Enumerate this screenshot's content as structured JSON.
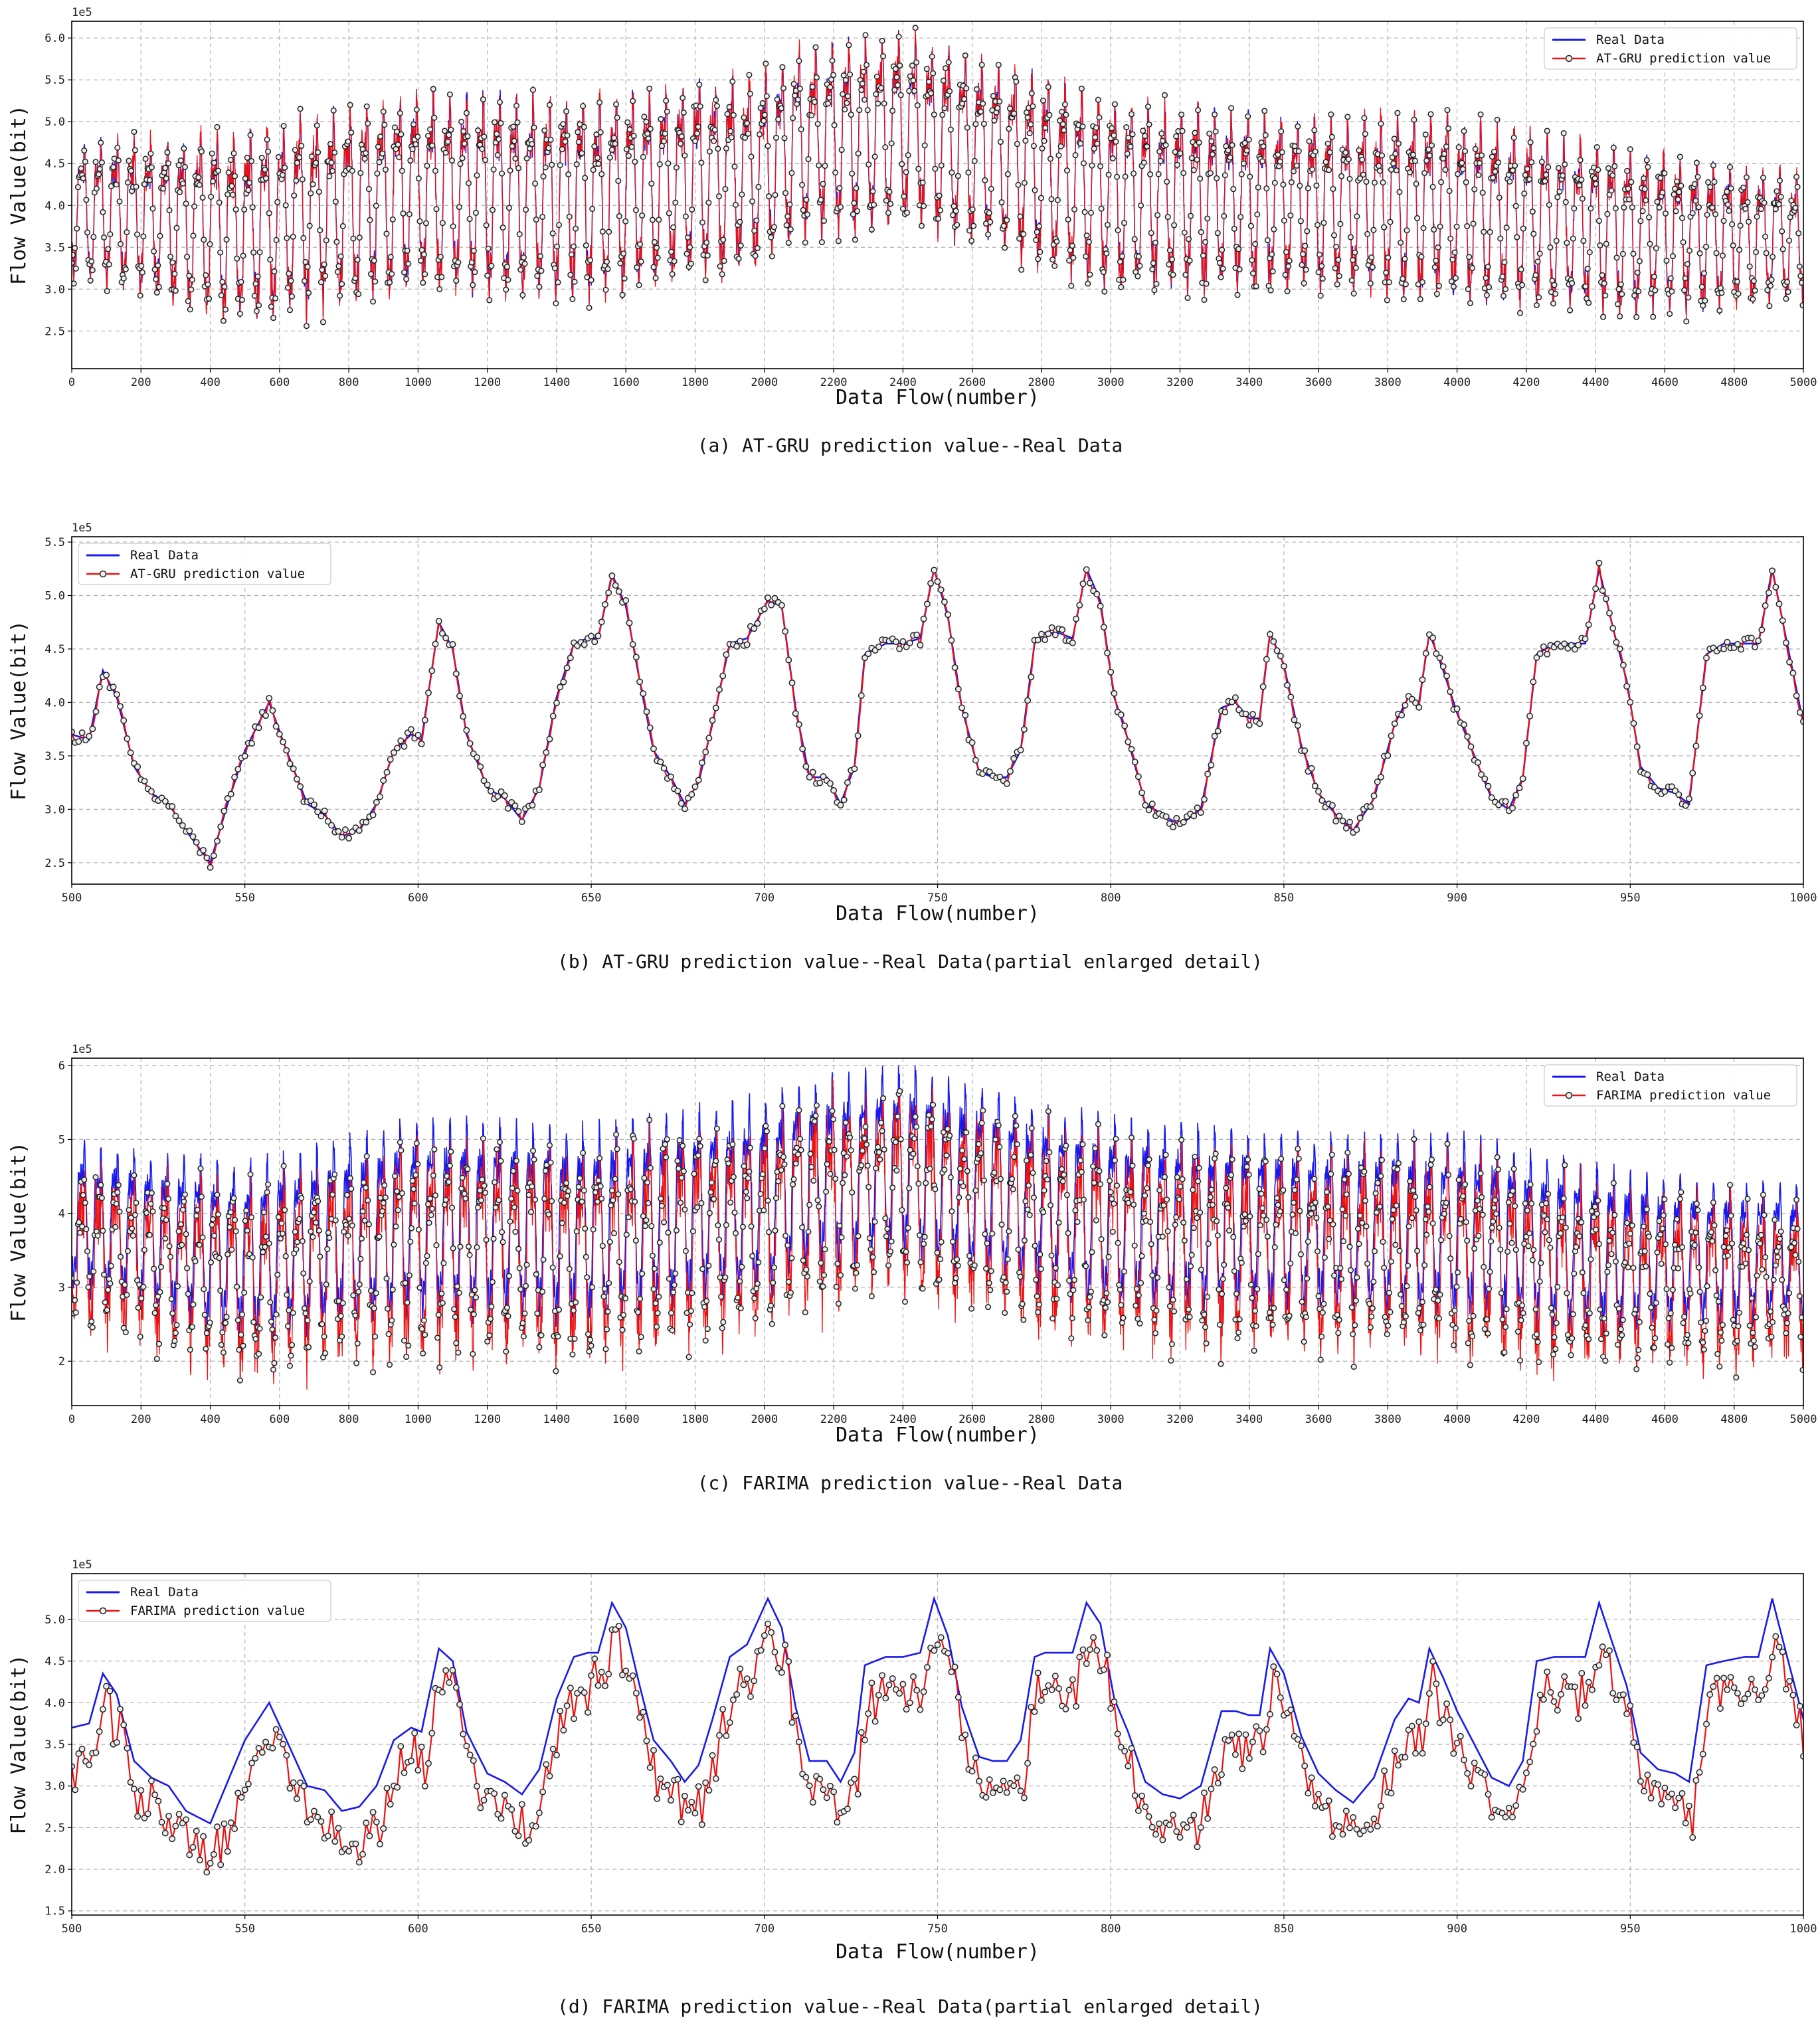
{
  "figure": {
    "colors": {
      "real": "#1a1aee",
      "prediction": "#ee1111",
      "marker_fill": "#eeeeee",
      "marker_edge": "#222222",
      "grid": "#b0b0b0"
    }
  },
  "chart_data": [
    {
      "id": "a",
      "type": "line",
      "title": "(a)  AT-GRU prediction value--Real Data",
      "xlabel": "Data Flow(number)",
      "ylabel": "Flow Value(bit)",
      "offset_text": "1e5",
      "xlim": [
        0,
        5000
      ],
      "ylim": [
        2.05,
        6.2
      ],
      "xticks": [
        0,
        200,
        400,
        600,
        800,
        1000,
        1200,
        1400,
        1600,
        1800,
        2000,
        2200,
        2400,
        2600,
        2800,
        3000,
        3200,
        3400,
        3600,
        3800,
        4000,
        4200,
        4400,
        4600,
        4800,
        5000
      ],
      "yticks": [
        2.5,
        3.0,
        3.5,
        4.0,
        4.5,
        5.0,
        5.5,
        6.0
      ],
      "ytick_decimals": 1,
      "grid": true,
      "legend": {
        "position": "top-right"
      },
      "series": [
        {
          "name": "Real Data",
          "color": "#1a1aee"
        },
        {
          "name": "AT-GRU prediction value",
          "color": "#ee1111",
          "marker": "o"
        }
      ],
      "x_sample": [
        0,
        500,
        1000,
        1500,
        2000,
        2100,
        2400,
        3000,
        3500,
        4000,
        4500,
        5000
      ],
      "envelope_upper": [
        4.7,
        4.8,
        5.3,
        5.2,
        5.5,
        5.8,
        6.0,
        5.2,
        5.0,
        5.0,
        4.6,
        4.3
      ],
      "envelope_lower": [
        3.1,
        2.5,
        2.9,
        2.8,
        3.2,
        3.5,
        3.7,
        2.9,
        2.9,
        2.8,
        2.6,
        2.8
      ],
      "points": 5000,
      "model_noise": 0.08,
      "model_bias": 0.0
    },
    {
      "id": "b",
      "type": "line",
      "title": "(b)  AT-GRU prediction value--Real Data(partial enlarged detail)",
      "xlabel": "Data Flow(number)",
      "ylabel": "Flow Value(bit)",
      "offset_text": "1e5",
      "xlim": [
        500,
        1000
      ],
      "ylim": [
        2.3,
        5.55
      ],
      "xticks": [
        500,
        550,
        600,
        650,
        700,
        750,
        800,
        850,
        900,
        950,
        1000
      ],
      "yticks": [
        2.5,
        3.0,
        3.5,
        4.0,
        4.5,
        5.0,
        5.5
      ],
      "ytick_decimals": 1,
      "grid": true,
      "legend": {
        "position": "top-left"
      },
      "series": [
        {
          "name": "Real Data",
          "color": "#1a1aee"
        },
        {
          "name": "AT-GRU prediction value",
          "color": "#ee1111",
          "marker": "o"
        }
      ],
      "real_data_keypoints": {
        "x": [
          500,
          505,
          509,
          513,
          518,
          523,
          528,
          533,
          540,
          545,
          550,
          557,
          562,
          568,
          573,
          578,
          583,
          588,
          593,
          598,
          601,
          606,
          610,
          614,
          620,
          625,
          630,
          635,
          640,
          645,
          649,
          652,
          656,
          660,
          664,
          668,
          673,
          677,
          681,
          685,
          690,
          695,
          701,
          705,
          709,
          713,
          718,
          722,
          726,
          729,
          735,
          740,
          745,
          749,
          753,
          757,
          762,
          766,
          770,
          774,
          778,
          781,
          785,
          789,
          793,
          797,
          801,
          805,
          810,
          815,
          820,
          826,
          832,
          836,
          840,
          843,
          846,
          850,
          855,
          860,
          865,
          870,
          876,
          882,
          886,
          889,
          892,
          896,
          900,
          905,
          910,
          915,
          919,
          923,
          928,
          933,
          937,
          941,
          945,
          949,
          953,
          958,
          963,
          967,
          972,
          977,
          983,
          987,
          991,
          995,
          1000
        ],
        "y": [
          3.7,
          3.65,
          4.3,
          4.05,
          3.4,
          3.15,
          3.05,
          2.8,
          2.5,
          3.05,
          3.55,
          4.0,
          3.55,
          3.05,
          2.95,
          2.75,
          2.8,
          3.05,
          3.55,
          3.7,
          3.65,
          4.75,
          4.5,
          3.7,
          3.2,
          3.1,
          2.9,
          3.2,
          4.05,
          4.55,
          4.6,
          4.6,
          5.2,
          4.9,
          4.2,
          3.55,
          3.3,
          3.05,
          3.25,
          3.8,
          4.55,
          4.6,
          4.95,
          4.9,
          3.95,
          3.3,
          3.3,
          3.05,
          3.4,
          4.45,
          4.55,
          4.55,
          4.6,
          5.25,
          4.8,
          3.95,
          3.35,
          3.3,
          3.3,
          3.55,
          4.55,
          4.65,
          4.65,
          4.6,
          5.25,
          4.95,
          4.05,
          3.65,
          3.05,
          2.95,
          2.85,
          3.0,
          3.95,
          4.0,
          3.85,
          3.85,
          4.65,
          4.35,
          3.6,
          3.15,
          2.95,
          2.8,
          3.1,
          3.8,
          4.05,
          4.0,
          4.65,
          4.3,
          3.9,
          3.5,
          3.1,
          3.0,
          3.3,
          4.45,
          4.55,
          4.55,
          4.55,
          5.25,
          4.7,
          4.2,
          3.4,
          3.2,
          3.15,
          3.05,
          4.45,
          4.55,
          4.55,
          4.55,
          5.25,
          4.6,
          3.8
        ]
      },
      "model_noise": 0.06,
      "model_bias": -0.02
    },
    {
      "id": "c",
      "type": "line",
      "title": "(c)  FARIMA prediction value--Real Data",
      "xlabel": "Data Flow(number)",
      "ylabel": "Flow Value(bit)",
      "offset_text": "1e5",
      "xlim": [
        0,
        5000
      ],
      "ylim": [
        1.4,
        6.1
      ],
      "xticks": [
        0,
        200,
        400,
        600,
        800,
        1000,
        1200,
        1400,
        1600,
        1800,
        2000,
        2200,
        2400,
        2600,
        2800,
        3000,
        3200,
        3400,
        3600,
        3800,
        4000,
        4200,
        4400,
        4600,
        4800,
        5000
      ],
      "yticks": [
        2,
        3,
        4,
        5,
        6
      ],
      "ytick_decimals": 0,
      "grid": true,
      "legend": {
        "position": "top-right"
      },
      "series": [
        {
          "name": "Real Data",
          "color": "#1a1aee"
        },
        {
          "name": "FARIMA prediction value",
          "color": "#ee1111",
          "marker": "o"
        }
      ],
      "x_sample": [
        0,
        500,
        1000,
        1500,
        2000,
        2100,
        2400,
        3000,
        3500,
        4000,
        4500,
        5000
      ],
      "envelope_upper": [
        4.9,
        4.6,
        5.2,
        5.1,
        5.5,
        5.7,
        5.9,
        5.2,
        5.0,
        5.0,
        4.5,
        4.3
      ],
      "envelope_lower": [
        2.9,
        2.2,
        2.5,
        2.4,
        2.8,
        3.1,
        3.3,
        2.6,
        2.6,
        2.5,
        2.3,
        2.5
      ],
      "points": 5000,
      "model_noise": 0.55,
      "model_bias": -0.35
    },
    {
      "id": "d",
      "type": "line",
      "title": "(d)  FARIMA prediction value--Real Data(partial enlarged detail)",
      "xlabel": "Data Flow(number)",
      "ylabel": "Flow Value(bit)",
      "offset_text": "1e5",
      "xlim": [
        500,
        1000
      ],
      "ylim": [
        1.45,
        5.55
      ],
      "xticks": [
        500,
        550,
        600,
        650,
        700,
        750,
        800,
        850,
        900,
        950,
        1000
      ],
      "yticks": [
        1.5,
        2.0,
        2.5,
        3.0,
        3.5,
        4.0,
        4.5,
        5.0
      ],
      "ytick_decimals": 1,
      "grid": true,
      "legend": {
        "position": "top-left"
      },
      "series": [
        {
          "name": "Real Data",
          "color": "#1a1aee"
        },
        {
          "name": "FARIMA prediction value",
          "color": "#ee1111",
          "marker": "o"
        }
      ],
      "real_data_keypoints": {
        "x": [
          500,
          505,
          509,
          513,
          518,
          523,
          528,
          533,
          540,
          545,
          550,
          557,
          562,
          568,
          573,
          578,
          583,
          588,
          593,
          598,
          601,
          606,
          610,
          614,
          620,
          625,
          630,
          635,
          640,
          645,
          649,
          652,
          656,
          660,
          664,
          668,
          673,
          677,
          681,
          685,
          690,
          695,
          701,
          705,
          709,
          713,
          718,
          722,
          726,
          729,
          735,
          740,
          745,
          749,
          753,
          757,
          762,
          766,
          770,
          774,
          778,
          781,
          785,
          789,
          793,
          797,
          801,
          805,
          810,
          815,
          820,
          826,
          832,
          836,
          840,
          843,
          846,
          850,
          855,
          860,
          865,
          870,
          876,
          882,
          886,
          889,
          892,
          896,
          900,
          905,
          910,
          915,
          919,
          923,
          928,
          933,
          937,
          941,
          945,
          949,
          953,
          958,
          963,
          967,
          972,
          977,
          983,
          987,
          991,
          995,
          1000
        ],
        "y": [
          3.7,
          3.75,
          4.35,
          4.1,
          3.3,
          3.1,
          3.0,
          2.7,
          2.55,
          3.05,
          3.55,
          4.0,
          3.55,
          3.0,
          2.95,
          2.7,
          2.75,
          3.0,
          3.55,
          3.7,
          3.65,
          4.65,
          4.5,
          3.65,
          3.15,
          3.05,
          2.9,
          3.2,
          4.05,
          4.55,
          4.6,
          4.6,
          5.2,
          4.9,
          4.2,
          3.55,
          3.3,
          3.05,
          3.25,
          3.8,
          4.55,
          4.7,
          5.25,
          4.9,
          3.95,
          3.3,
          3.3,
          3.05,
          3.4,
          4.45,
          4.55,
          4.55,
          4.6,
          5.25,
          4.8,
          3.95,
          3.35,
          3.3,
          3.3,
          3.55,
          4.55,
          4.6,
          4.6,
          4.6,
          5.2,
          4.95,
          4.05,
          3.65,
          3.05,
          2.9,
          2.85,
          3.0,
          3.9,
          3.9,
          3.85,
          3.85,
          4.65,
          4.35,
          3.6,
          3.15,
          2.95,
          2.8,
          3.1,
          3.8,
          4.05,
          4.0,
          4.65,
          4.3,
          3.9,
          3.5,
          3.1,
          3.0,
          3.3,
          4.5,
          4.55,
          4.55,
          4.55,
          5.2,
          4.7,
          4.2,
          3.4,
          3.2,
          3.15,
          3.05,
          4.45,
          4.5,
          4.55,
          4.55,
          5.25,
          4.6,
          3.8
        ]
      },
      "model_noise": 0.45,
      "model_bias": -0.55
    }
  ]
}
